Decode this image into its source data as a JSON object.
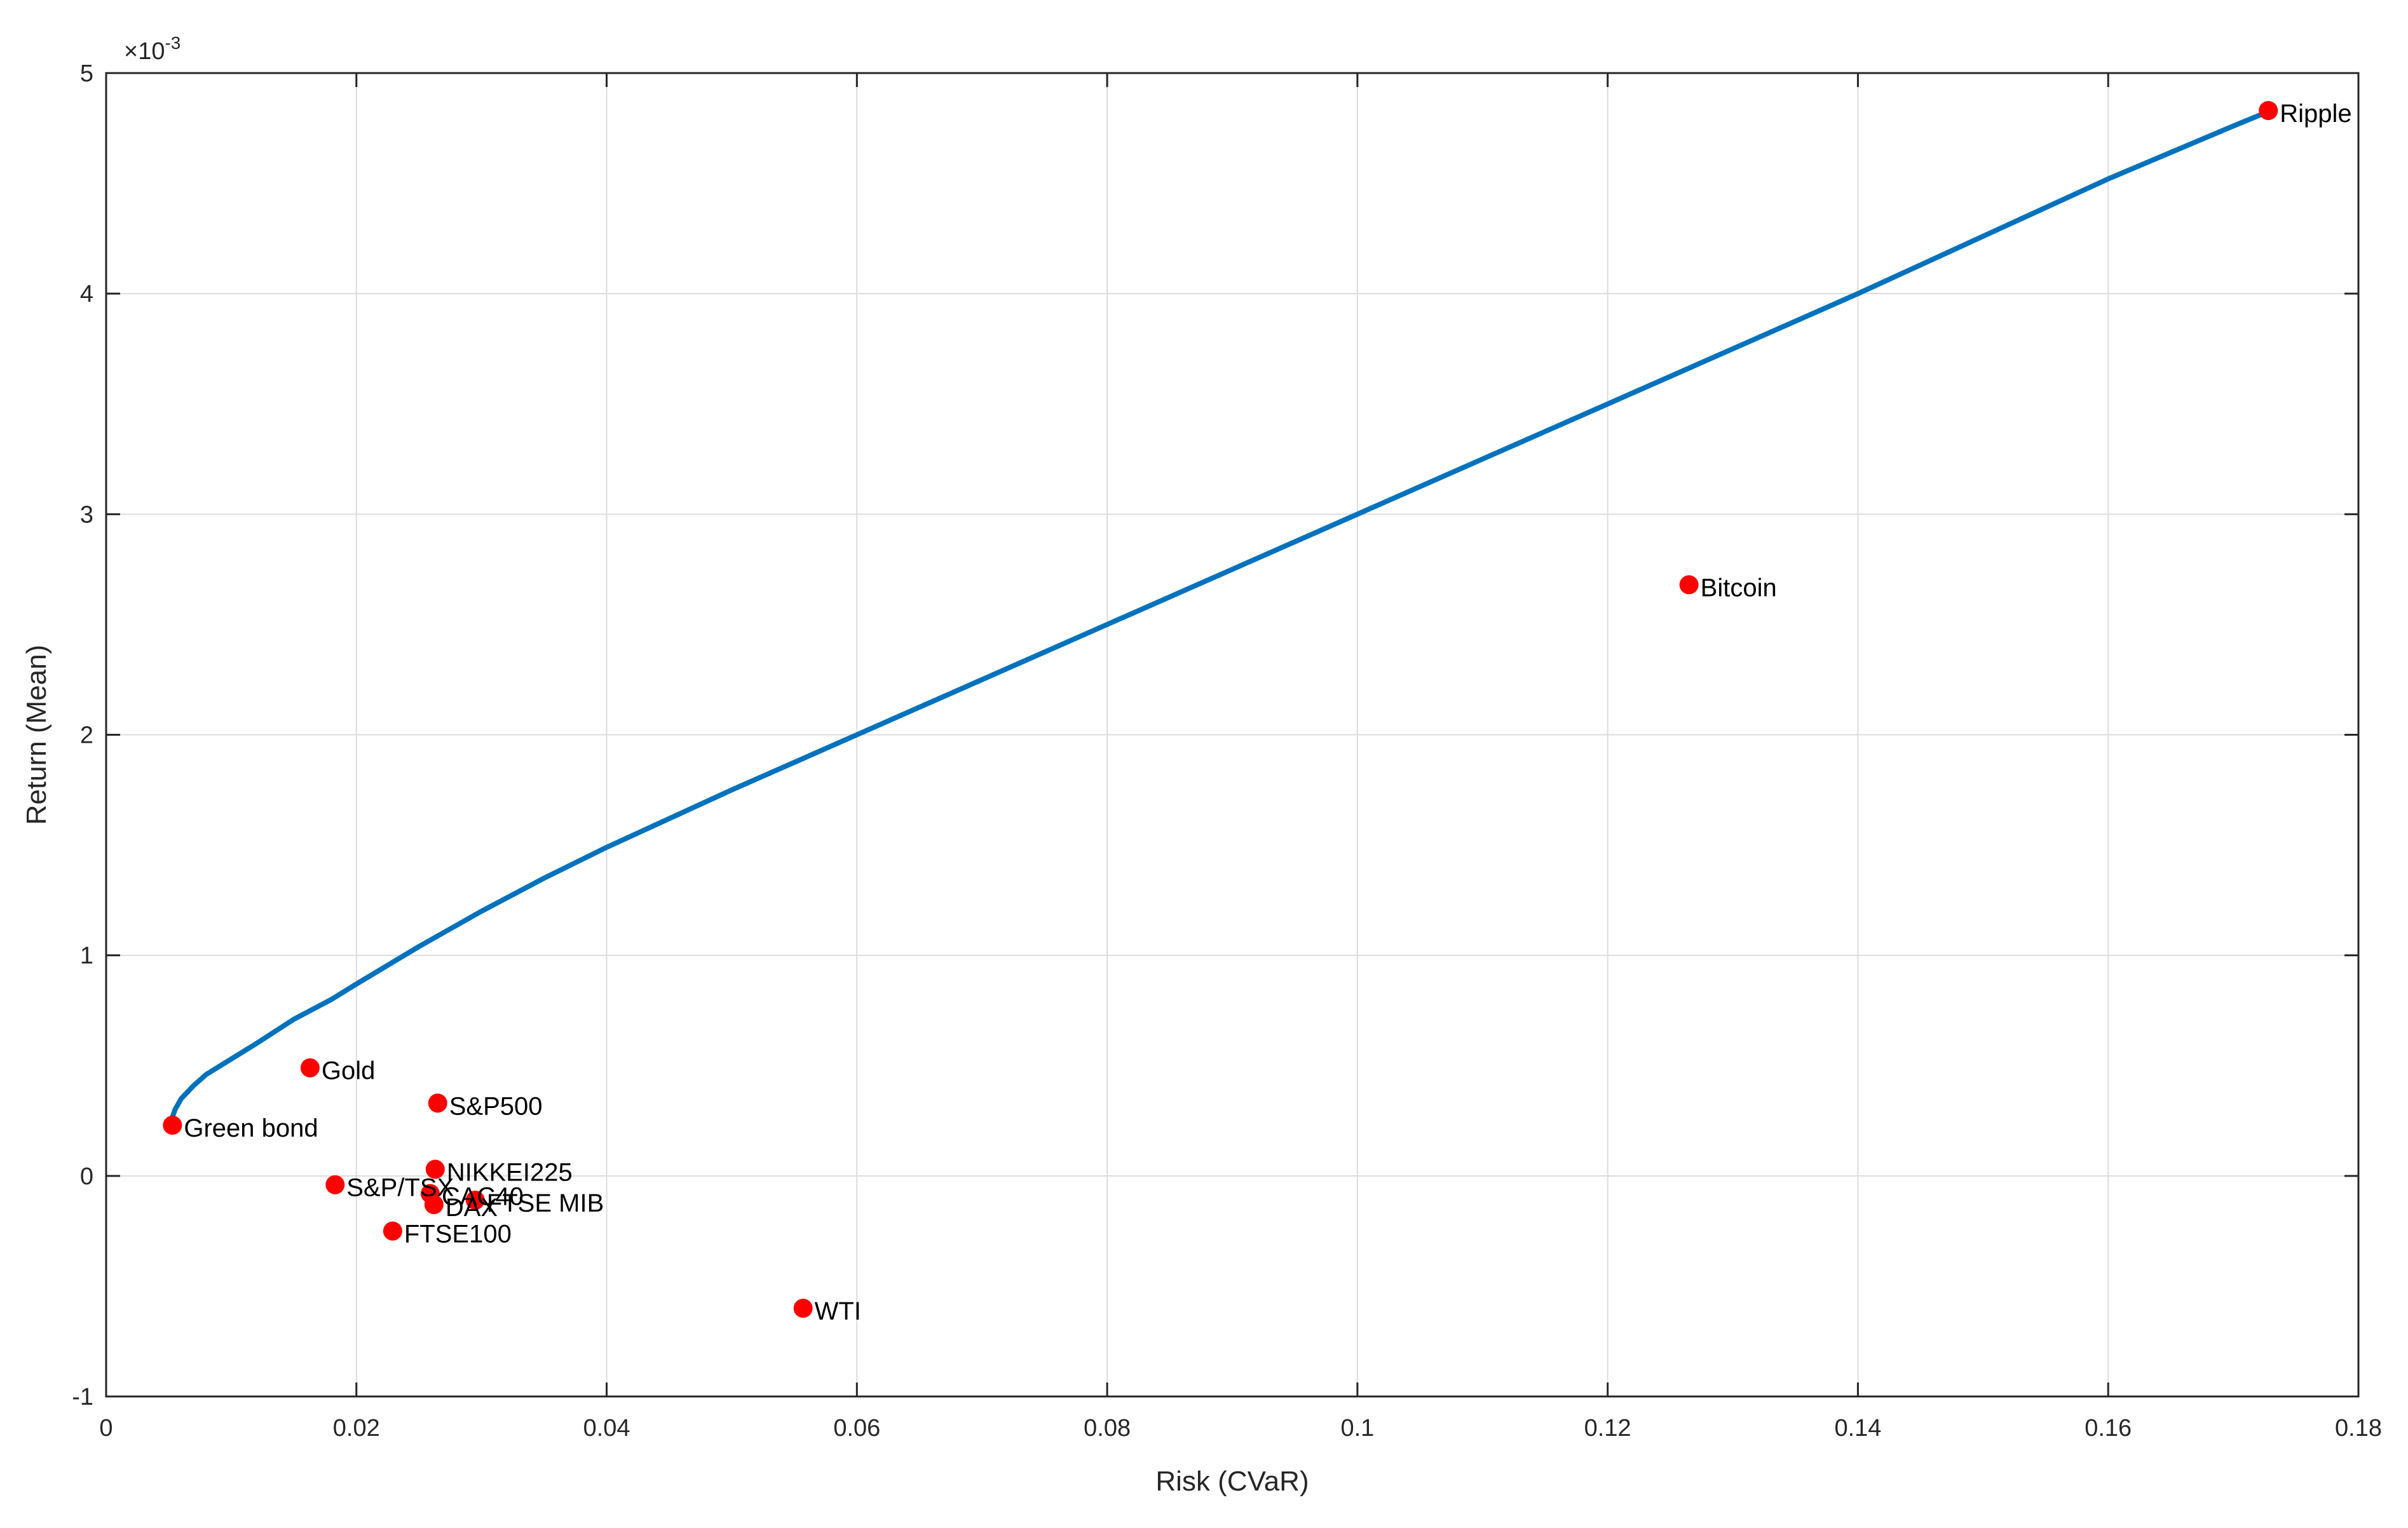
{
  "chart_data": {
    "type": "scatter",
    "xlabel": "Risk (CVaR)",
    "ylabel": "Return (Mean)",
    "y_multiplier": {
      "prefix": "×10",
      "exponent": "-3"
    },
    "xlim": [
      0,
      0.18
    ],
    "ylim": [
      -1,
      5
    ],
    "grid": true,
    "x_ticks": [
      0,
      0.02,
      0.04,
      0.06,
      0.08,
      0.1,
      0.12,
      0.14,
      0.16,
      0.18
    ],
    "x_tick_labels": [
      "0",
      "0.02",
      "0.04",
      "0.06",
      "0.08",
      "0.1",
      "0.12",
      "0.14",
      "0.16",
      "0.18"
    ],
    "y_ticks": [
      -1,
      0,
      1,
      2,
      3,
      4,
      5
    ],
    "y_tick_labels": [
      "-1",
      "0",
      "1",
      "2",
      "3",
      "4",
      "5"
    ],
    "frontier": {
      "color": "#0072BD",
      "x": [
        0.0052,
        0.0055,
        0.006,
        0.007,
        0.008,
        0.01,
        0.012,
        0.015,
        0.018,
        0.02,
        0.025,
        0.03,
        0.035,
        0.04,
        0.05,
        0.06,
        0.07,
        0.08,
        0.09,
        0.1,
        0.11,
        0.12,
        0.13,
        0.14,
        0.15,
        0.16,
        0.17,
        0.173
      ],
      "y": [
        0.25,
        0.3,
        0.35,
        0.41,
        0.46,
        0.53,
        0.6,
        0.71,
        0.8,
        0.87,
        1.04,
        1.2,
        1.35,
        1.49,
        1.75,
        2.0,
        2.25,
        2.5,
        2.75,
        3.0,
        3.25,
        3.5,
        3.75,
        4.0,
        4.26,
        4.52,
        4.76,
        4.83
      ]
    },
    "points_color": "#FF0000",
    "points": [
      {
        "label": "Ripple",
        "x": 0.1728,
        "y": 4.83
      },
      {
        "label": "Bitcoin",
        "x": 0.1265,
        "y": 2.68
      },
      {
        "label": "Gold",
        "x": 0.0163,
        "y": 0.49
      },
      {
        "label": "Green bond",
        "x": 0.0053,
        "y": 0.23
      },
      {
        "label": "S&P500",
        "x": 0.0265,
        "y": 0.33
      },
      {
        "label": "NIKKEI225",
        "x": 0.0263,
        "y": 0.03
      },
      {
        "label": "S&P/TSX",
        "x": 0.0183,
        "y": -0.04
      },
      {
        "label": "CAC40",
        "x": 0.0259,
        "y": -0.08
      },
      {
        "label": "DAX",
        "x": 0.0262,
        "y": -0.13
      },
      {
        "label": "FTSE MIB",
        "x": 0.0295,
        "y": -0.11
      },
      {
        "label": "FTSE100",
        "x": 0.0229,
        "y": -0.25
      },
      {
        "label": "WTI",
        "x": 0.0557,
        "y": -0.6
      }
    ]
  }
}
